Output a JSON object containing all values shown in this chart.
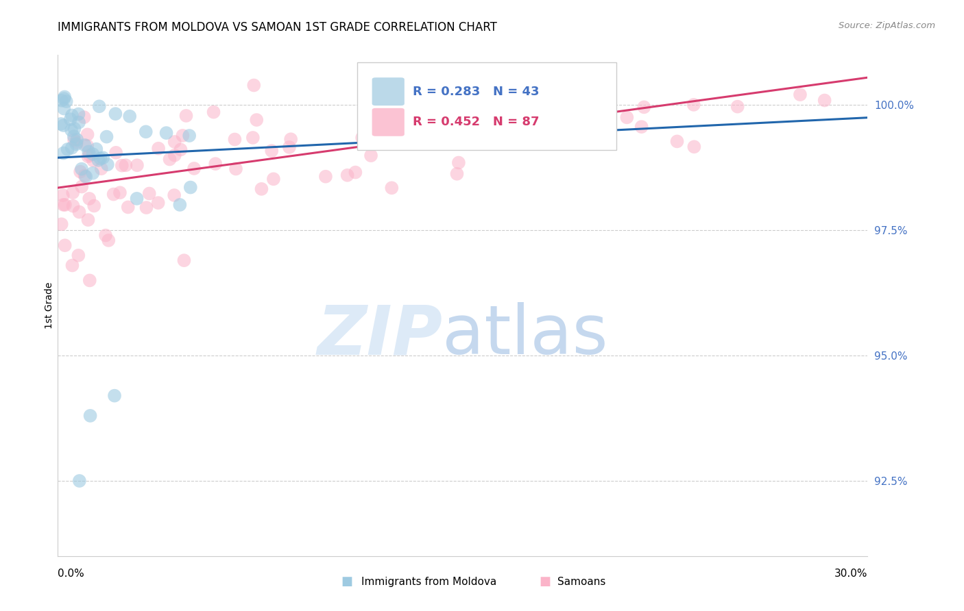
{
  "title": "IMMIGRANTS FROM MOLDOVA VS SAMOAN 1ST GRADE CORRELATION CHART",
  "source": "Source: ZipAtlas.com",
  "ylabel": "1st Grade",
  "ytick_vals": [
    92.5,
    95.0,
    97.5,
    100.0
  ],
  "ytick_labels": [
    "92.5%",
    "95.0%",
    "97.5%",
    "100.0%"
  ],
  "ymin": 91.0,
  "ymax": 101.0,
  "xmin": 0.0,
  "xmax": 30.0,
  "blue_R": 0.283,
  "blue_N": 43,
  "pink_R": 0.452,
  "pink_N": 87,
  "blue_label": "Immigrants from Moldova",
  "pink_label": "Samoans",
  "blue_scatter_color": "#9ecae1",
  "pink_scatter_color": "#fbb4c9",
  "blue_line_color": "#2166ac",
  "pink_line_color": "#d63b6e",
  "blue_text_color": "#4472c4",
  "pink_text_color": "#d63b6e",
  "right_axis_color": "#4472c4",
  "grid_color": "#cccccc",
  "source_color": "#888888",
  "watermark_zip_color": "#ddeaf7",
  "watermark_atlas_color": "#c5d8ee",
  "blue_line_x0": 0.0,
  "blue_line_y0": 98.95,
  "blue_line_x1": 30.0,
  "blue_line_y1": 99.75,
  "pink_line_x0": 0.0,
  "pink_line_y0": 98.35,
  "pink_line_x1": 30.0,
  "pink_line_y1": 100.55
}
